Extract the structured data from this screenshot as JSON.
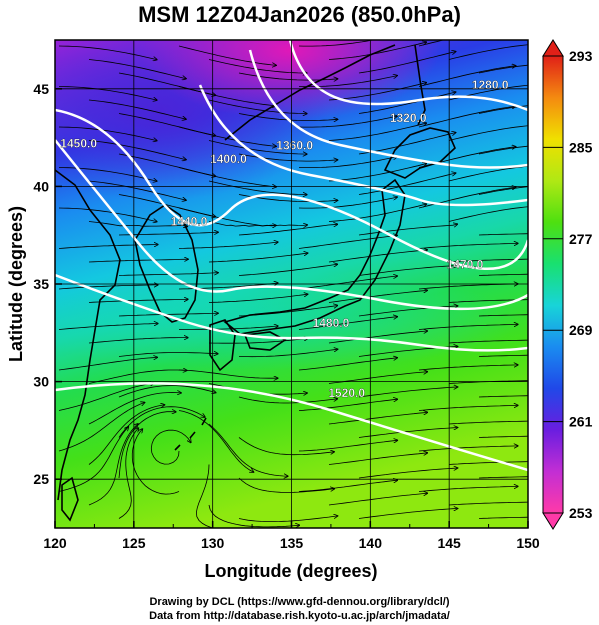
{
  "title": "MSM 12Z04Jan2026 (850.0hPa)",
  "x_axis": {
    "label": "Longitude (degrees)",
    "range": [
      120,
      150
    ],
    "ticks": [
      "120",
      "125",
      "130",
      "135",
      "140",
      "145",
      "150"
    ]
  },
  "y_axis": {
    "label": "Latitude  (degrees)",
    "range": [
      22.5,
      47.5
    ],
    "ticks": [
      "25",
      "30",
      "35",
      "40",
      "45"
    ]
  },
  "colorbar": {
    "range": [
      253,
      293
    ],
    "ticks": [
      "253",
      "261",
      "269",
      "277",
      "285",
      "293"
    ],
    "stops": [
      "#ff3aa8",
      "#c22ed4",
      "#6a1ee0",
      "#2048e8",
      "#1a8cf0",
      "#18d4d8",
      "#19e070",
      "#4ee010",
      "#b0e814",
      "#f0e000",
      "#f48a10",
      "#e02018"
    ]
  },
  "contours": [
    {
      "label": "1280.0",
      "lon": 147.6,
      "lat": 45.0
    },
    {
      "label": "1320.0",
      "lon": 142.4,
      "lat": 43.3
    },
    {
      "label": "1360.0",
      "lon": 135.2,
      "lat": 41.9
    },
    {
      "label": "1400.0",
      "lon": 131.0,
      "lat": 41.2
    },
    {
      "label": "1440.0",
      "lon": 128.5,
      "lat": 38.0
    },
    {
      "label": "1450.0",
      "lon": 121.5,
      "lat": 42.0
    },
    {
      "label": "1480.0",
      "lon": 137.5,
      "lat": 32.8
    },
    {
      "label": "1520.0",
      "lon": 138.5,
      "lat": 29.2
    },
    {
      "label": "1470.0",
      "lon": 146.0,
      "lat": 35.8
    }
  ],
  "credits": {
    "line1": "Drawing by DCL (https://www.gfd-dennou.org/library/dcl/)",
    "line2": "Data from http://database.rish.kyoto-u.ac.jp/arch/jmadata/"
  }
}
